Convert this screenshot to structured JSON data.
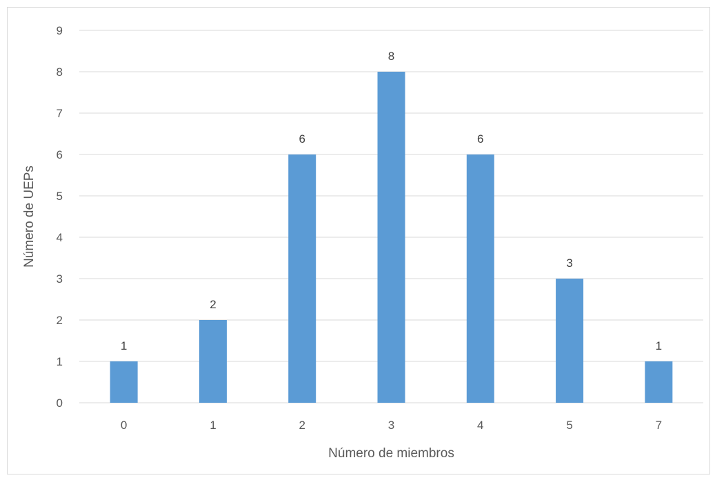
{
  "chart_data": {
    "type": "bar",
    "categories": [
      "0",
      "1",
      "2",
      "3",
      "4",
      "5",
      "7"
    ],
    "values": [
      1,
      2,
      6,
      8,
      6,
      3,
      1
    ],
    "title": "",
    "xlabel": "Número de miembros",
    "ylabel": "Número de UEPs",
    "ylim": [
      0,
      9
    ],
    "yticks": [
      "0",
      "1",
      "2",
      "3",
      "4",
      "5",
      "6",
      "7",
      "8",
      "9"
    ],
    "grid": true,
    "data_labels": true,
    "bar_color": "#5b9bd5",
    "grid_color": "#d9d9d9"
  }
}
